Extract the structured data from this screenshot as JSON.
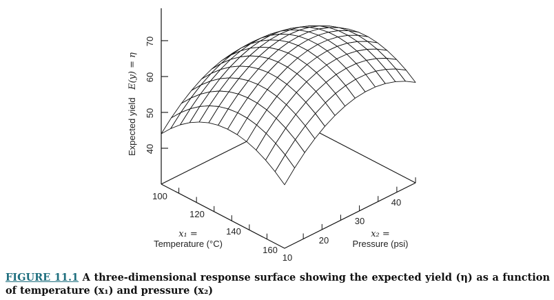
{
  "figure": {
    "z_axis": {
      "label_prefix": "Expected yield",
      "label_math": "E(y) = η",
      "ticks": [
        "40",
        "50",
        "60",
        "70"
      ]
    },
    "x1_axis": {
      "symbol": "x₁ =",
      "label": "Temperature (°C)",
      "ticks": [
        "100",
        "120",
        "140",
        "160"
      ]
    },
    "x2_axis": {
      "symbol": "x₂ =",
      "label": "Pressure (psi)",
      "ticks": [
        "10",
        "20",
        "30",
        "40"
      ]
    },
    "surface_style": {
      "fill": "#ffffff",
      "stroke": "#111111"
    }
  },
  "caption": {
    "number": "FIGURE 11.1",
    "text": "A three-dimensional response surface showing the expected yield (η) as a function of temperature (x₁) and pressure (x₂)",
    "number_color": "#1f6f7f"
  }
}
